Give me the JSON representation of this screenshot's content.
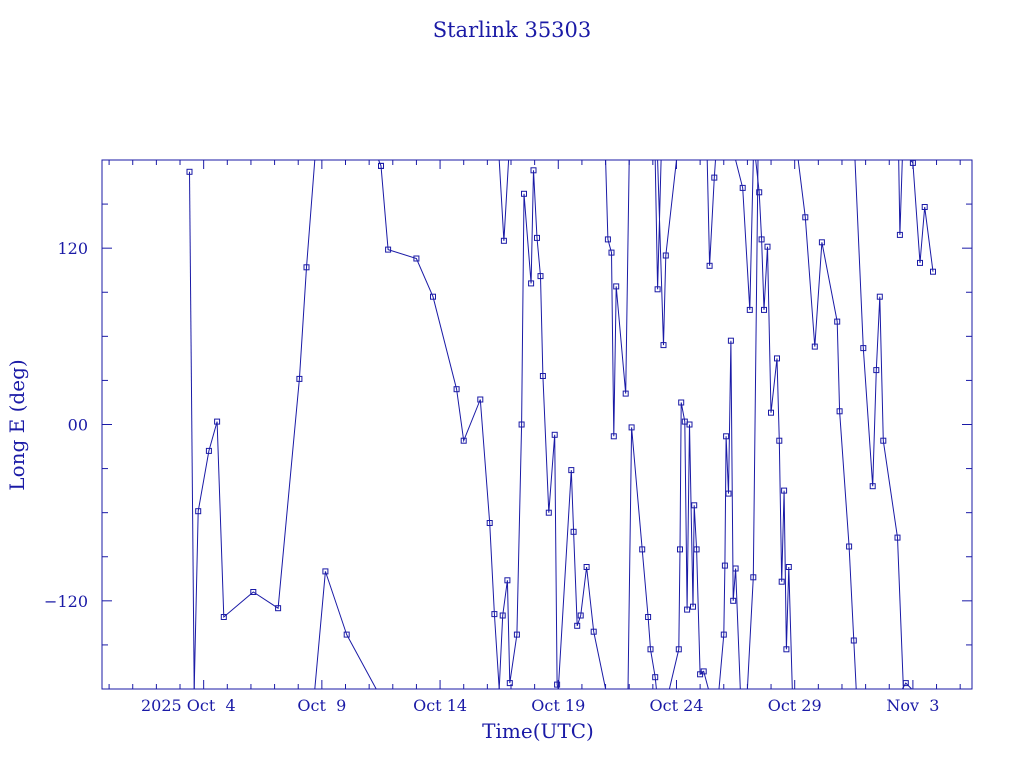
{
  "chart_data": {
    "type": "line",
    "title": "Starlink 35303",
    "xlabel": "Time(UTC)",
    "ylabel": "Long E (deg)",
    "x_ticks": [
      {
        "label": "2025 Oct  4",
        "day": 4
      },
      {
        "label": "Oct  9",
        "day": 9
      },
      {
        "label": "Oct 14",
        "day": 14
      },
      {
        "label": "Oct 19",
        "day": 19
      },
      {
        "label": "Oct 24",
        "day": 24
      },
      {
        "label": "Oct 29",
        "day": 29
      },
      {
        "label": "Nov  3",
        "day": 34
      }
    ],
    "y_ticks": [
      {
        "label": "120",
        "value": 120
      },
      {
        "label": "00",
        "value": 0
      },
      {
        "label": "−120",
        "value": -120
      }
    ],
    "xlim": [
      -0.3,
      36.5
    ],
    "ylim": [
      -180,
      180
    ],
    "colors": {
      "line": "#1a1aa6",
      "text": "#1a1aa6",
      "background": "#ffffff"
    },
    "series": [
      {
        "values": [
          [
            3.4,
            172
          ],
          [
            3.6,
            -180
          ]
        ]
      },
      {
        "values": [
          [
            3.6,
            -180
          ],
          [
            3.77,
            -59
          ],
          [
            4.22,
            -18
          ],
          [
            4.57,
            2
          ],
          [
            4.85,
            -131
          ],
          [
            6.1,
            -114
          ],
          [
            7.15,
            -125
          ],
          [
            8.05,
            31
          ],
          [
            8.35,
            107
          ],
          [
            8.7,
            180
          ]
        ]
      },
      {
        "values": [
          [
            8.7,
            -180
          ],
          [
            9.15,
            -100
          ],
          [
            10.05,
            -143
          ],
          [
            11.3,
            -180
          ]
        ]
      },
      {
        "values": [
          [
            11.4,
            180
          ],
          [
            11.5,
            176
          ],
          [
            11.8,
            119
          ],
          [
            13.0,
            113
          ],
          [
            13.7,
            87
          ],
          [
            14.7,
            24
          ],
          [
            15.0,
            -11
          ],
          [
            15.7,
            17
          ],
          [
            16.1,
            -67
          ],
          [
            16.3,
            -129
          ],
          [
            16.5,
            -180
          ]
        ]
      },
      {
        "values": [
          [
            16.5,
            180
          ],
          [
            16.7,
            125
          ],
          [
            16.9,
            180
          ]
        ]
      },
      {
        "values": [
          [
            16.5,
            -180
          ],
          [
            16.65,
            -130
          ],
          [
            16.85,
            -106
          ],
          [
            16.95,
            -176
          ],
          [
            17.25,
            -143
          ],
          [
            17.45,
            0
          ],
          [
            17.55,
            157
          ],
          [
            17.85,
            96
          ],
          [
            17.95,
            173
          ],
          [
            18.1,
            127
          ],
          [
            18.25,
            101
          ],
          [
            18.35,
            33
          ],
          [
            18.6,
            -60
          ],
          [
            18.85,
            -7
          ],
          [
            18.95,
            -177
          ],
          [
            19.0,
            -180
          ]
        ]
      },
      {
        "values": [
          [
            19.0,
            -180
          ],
          [
            19.55,
            -31
          ],
          [
            19.65,
            -73
          ],
          [
            19.8,
            -137
          ],
          [
            19.95,
            -130
          ],
          [
            20.2,
            -97
          ],
          [
            20.5,
            -141
          ],
          [
            21.0,
            -180
          ]
        ]
      },
      {
        "values": [
          [
            21.0,
            180
          ],
          [
            21.1,
            126
          ],
          [
            21.25,
            117
          ],
          [
            21.35,
            -8
          ],
          [
            21.45,
            94
          ],
          [
            21.85,
            21
          ],
          [
            22.0,
            180
          ]
        ]
      },
      {
        "values": [
          [
            21.95,
            -180
          ],
          [
            22.1,
            -2
          ],
          [
            22.55,
            -85
          ],
          [
            22.8,
            -131
          ],
          [
            22.9,
            -153
          ],
          [
            23.1,
            -172
          ],
          [
            23.15,
            -180
          ]
        ]
      },
      {
        "values": [
          [
            23.1,
            180
          ],
          [
            23.2,
            92
          ],
          [
            23.35,
            180
          ]
        ]
      },
      {
        "values": [
          [
            23.2,
            180
          ],
          [
            23.45,
            54
          ],
          [
            23.55,
            115
          ],
          [
            24.0,
            180
          ]
        ]
      },
      {
        "values": [
          [
            23.7,
            -180
          ],
          [
            24.1,
            -153
          ],
          [
            24.15,
            -85
          ],
          [
            24.2,
            15
          ],
          [
            24.35,
            2
          ],
          [
            24.45,
            -126
          ],
          [
            24.55,
            0
          ],
          [
            24.7,
            -124
          ],
          [
            24.75,
            -55
          ],
          [
            24.85,
            -85
          ],
          [
            25.0,
            -170
          ],
          [
            25.15,
            -168
          ],
          [
            25.35,
            -180
          ]
        ]
      },
      {
        "values": [
          [
            25.3,
            180
          ],
          [
            25.4,
            108
          ],
          [
            25.6,
            168
          ],
          [
            25.65,
            180
          ]
        ]
      },
      {
        "values": [
          [
            25.8,
            -180
          ],
          [
            26.0,
            -143
          ],
          [
            26.05,
            -96
          ],
          [
            26.1,
            -8
          ],
          [
            26.2,
            -47
          ],
          [
            26.3,
            57
          ],
          [
            26.4,
            -120
          ],
          [
            26.5,
            -98
          ],
          [
            26.7,
            -180
          ]
        ]
      },
      {
        "values": [
          [
            26.5,
            180
          ],
          [
            26.8,
            161
          ],
          [
            27.1,
            78
          ],
          [
            27.25,
            180
          ]
        ]
      },
      {
        "values": [
          [
            27.0,
            -180
          ],
          [
            27.25,
            -104
          ],
          [
            27.45,
            180
          ]
        ]
      },
      {
        "values": [
          [
            27.35,
            180
          ],
          [
            27.5,
            158
          ],
          [
            27.6,
            126
          ],
          [
            27.7,
            78
          ],
          [
            27.85,
            121
          ],
          [
            28.0,
            8
          ],
          [
            28.25,
            45
          ],
          [
            28.35,
            -11
          ],
          [
            28.45,
            -107
          ],
          [
            28.55,
            -45
          ],
          [
            28.65,
            -153
          ],
          [
            28.75,
            -97
          ],
          [
            28.9,
            -180
          ]
        ]
      },
      {
        "values": [
          [
            29.15,
            180
          ],
          [
            29.45,
            141
          ],
          [
            29.85,
            53
          ],
          [
            30.15,
            124
          ],
          [
            30.8,
            70
          ],
          [
            30.9,
            9
          ],
          [
            31.3,
            -83
          ],
          [
            31.5,
            -147
          ],
          [
            31.6,
            -180
          ]
        ]
      },
      {
        "values": [
          [
            31.55,
            180
          ],
          [
            31.9,
            52
          ],
          [
            32.3,
            -42
          ],
          [
            32.45,
            37
          ],
          [
            32.6,
            87
          ],
          [
            32.75,
            -11
          ],
          [
            33.35,
            -77
          ],
          [
            33.6,
            -180
          ]
        ]
      },
      {
        "values": [
          [
            33.4,
            180
          ],
          [
            33.45,
            129
          ],
          [
            33.55,
            180
          ]
        ]
      },
      {
        "values": [
          [
            33.55,
            -180
          ],
          [
            33.7,
            -176
          ],
          [
            33.95,
            -180
          ]
        ]
      },
      {
        "values": [
          [
            33.9,
            180
          ],
          [
            34.0,
            178
          ],
          [
            34.3,
            110
          ],
          [
            34.5,
            148
          ],
          [
            34.85,
            104
          ]
        ]
      }
    ],
    "markers": [
      [
        3.4,
        172
      ],
      [
        3.77,
        -59
      ],
      [
        4.22,
        -18
      ],
      [
        4.57,
        2
      ],
      [
        4.85,
        -131
      ],
      [
        6.1,
        -114
      ],
      [
        7.15,
        -125
      ],
      [
        8.05,
        31
      ],
      [
        8.35,
        107
      ],
      [
        9.15,
        -100
      ],
      [
        10.05,
        -143
      ],
      [
        11.5,
        176
      ],
      [
        11.8,
        119
      ],
      [
        13.0,
        113
      ],
      [
        13.7,
        87
      ],
      [
        14.7,
        24
      ],
      [
        15.0,
        -11
      ],
      [
        15.7,
        17
      ],
      [
        16.1,
        -67
      ],
      [
        16.3,
        -129
      ],
      [
        16.7,
        125
      ],
      [
        16.85,
        -106
      ],
      [
        16.65,
        -130
      ],
      [
        16.95,
        -176
      ],
      [
        17.25,
        -143
      ],
      [
        17.45,
        0
      ],
      [
        17.55,
        157
      ],
      [
        17.85,
        96
      ],
      [
        17.95,
        173
      ],
      [
        18.1,
        127
      ],
      [
        18.25,
        101
      ],
      [
        18.35,
        33
      ],
      [
        18.6,
        -60
      ],
      [
        18.85,
        -7
      ],
      [
        18.95,
        -177
      ],
      [
        19.55,
        -31
      ],
      [
        19.65,
        -73
      ],
      [
        19.8,
        -137
      ],
      [
        19.95,
        -130
      ],
      [
        20.2,
        -97
      ],
      [
        20.5,
        -141
      ],
      [
        21.1,
        126
      ],
      [
        21.25,
        117
      ],
      [
        21.35,
        -8
      ],
      [
        21.45,
        94
      ],
      [
        21.85,
        21
      ],
      [
        22.1,
        -2
      ],
      [
        22.55,
        -85
      ],
      [
        22.8,
        -131
      ],
      [
        22.9,
        -153
      ],
      [
        23.1,
        -172
      ],
      [
        23.2,
        92
      ],
      [
        23.45,
        54
      ],
      [
        23.55,
        115
      ],
      [
        24.1,
        -153
      ],
      [
        24.15,
        -85
      ],
      [
        24.2,
        15
      ],
      [
        24.35,
        2
      ],
      [
        24.45,
        -126
      ],
      [
        24.55,
        0
      ],
      [
        24.7,
        -124
      ],
      [
        24.75,
        -55
      ],
      [
        24.85,
        -85
      ],
      [
        25.0,
        -170
      ],
      [
        25.15,
        -168
      ],
      [
        25.4,
        108
      ],
      [
        25.6,
        168
      ],
      [
        26.0,
        -143
      ],
      [
        26.05,
        -96
      ],
      [
        26.1,
        -8
      ],
      [
        26.2,
        -47
      ],
      [
        26.3,
        57
      ],
      [
        26.4,
        -120
      ],
      [
        26.5,
        -98
      ],
      [
        26.8,
        161
      ],
      [
        27.1,
        78
      ],
      [
        27.25,
        -104
      ],
      [
        27.5,
        158
      ],
      [
        27.6,
        126
      ],
      [
        27.7,
        78
      ],
      [
        27.85,
        121
      ],
      [
        28.0,
        8
      ],
      [
        28.25,
        45
      ],
      [
        28.35,
        -11
      ],
      [
        28.45,
        -107
      ],
      [
        28.55,
        -45
      ],
      [
        28.65,
        -153
      ],
      [
        28.75,
        -97
      ],
      [
        29.45,
        141
      ],
      [
        29.85,
        53
      ],
      [
        30.15,
        124
      ],
      [
        30.8,
        70
      ],
      [
        30.9,
        9
      ],
      [
        31.3,
        -83
      ],
      [
        31.5,
        -147
      ],
      [
        31.9,
        52
      ],
      [
        32.3,
        -42
      ],
      [
        32.45,
        37
      ],
      [
        32.6,
        87
      ],
      [
        32.75,
        -11
      ],
      [
        33.35,
        -77
      ],
      [
        33.45,
        129
      ],
      [
        33.7,
        -176
      ],
      [
        34.0,
        178
      ],
      [
        34.3,
        110
      ],
      [
        34.5,
        148
      ],
      [
        34.85,
        104
      ],
      [
        11.5,
        176
      ]
    ]
  }
}
